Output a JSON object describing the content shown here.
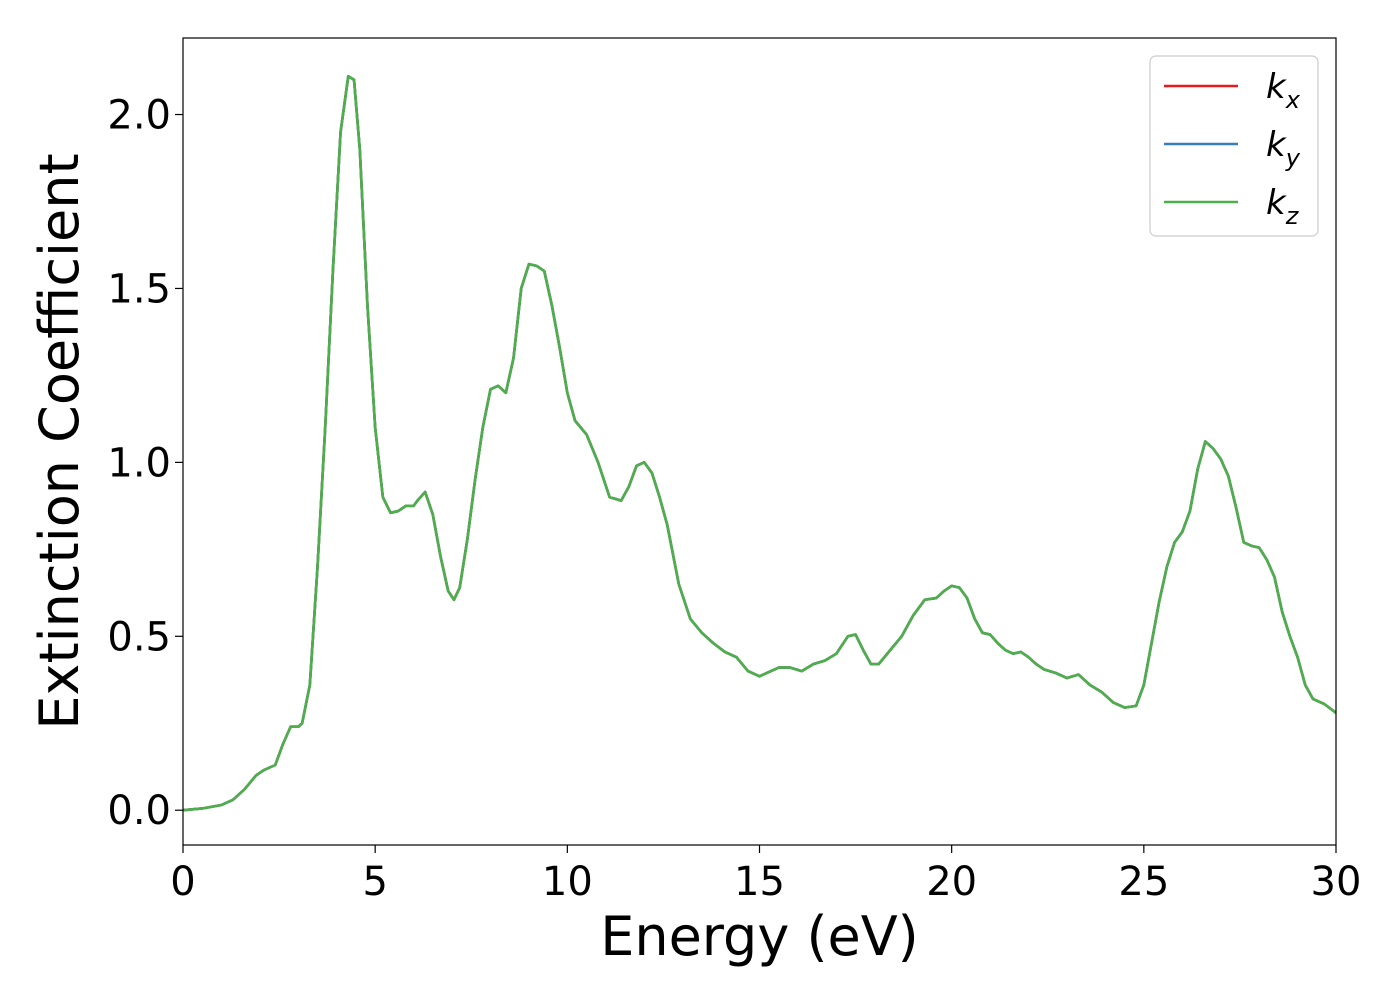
{
  "chart_data": {
    "type": "line",
    "title": "",
    "xlabel": "Energy (eV)",
    "ylabel": "Extinction Coefficient",
    "xlim": [
      0,
      30
    ],
    "ylim": [
      -0.1,
      2.22
    ],
    "xticks": [
      0,
      5,
      10,
      15,
      20,
      25,
      30
    ],
    "xtick_labels": [
      "0",
      "5",
      "10",
      "15",
      "20",
      "25",
      "30"
    ],
    "yticks": [
      0.0,
      0.5,
      1.0,
      1.5,
      2.0
    ],
    "ytick_labels": [
      "0.0",
      "0.5",
      "1.0",
      "1.5",
      "2.0"
    ],
    "grid": false,
    "legend_position": "top-right",
    "x": [
      0,
      0.5,
      1.0,
      1.3,
      1.6,
      1.9,
      2.1,
      2.4,
      2.6,
      2.8,
      3.0,
      3.1,
      3.3,
      3.5,
      3.7,
      3.9,
      4.1,
      4.3,
      4.45,
      4.6,
      4.8,
      5.0,
      5.2,
      5.4,
      5.6,
      5.8,
      6.0,
      6.1,
      6.3,
      6.5,
      6.7,
      6.9,
      7.05,
      7.2,
      7.4,
      7.6,
      7.8,
      8.0,
      8.2,
      8.4,
      8.6,
      8.8,
      9.0,
      9.2,
      9.4,
      9.6,
      9.8,
      10.0,
      10.2,
      10.5,
      10.8,
      11.1,
      11.4,
      11.6,
      11.8,
      12.0,
      12.2,
      12.4,
      12.6,
      12.9,
      13.2,
      13.5,
      13.8,
      14.1,
      14.4,
      14.7,
      15.0,
      15.2,
      15.5,
      15.8,
      16.1,
      16.4,
      16.7,
      17.0,
      17.3,
      17.5,
      17.7,
      17.9,
      18.1,
      18.4,
      18.7,
      19.0,
      19.3,
      19.6,
      19.8,
      20.0,
      20.2,
      20.4,
      20.6,
      20.8,
      21.0,
      21.2,
      21.4,
      21.6,
      21.8,
      22.0,
      22.2,
      22.4,
      22.7,
      23.0,
      23.3,
      23.6,
      23.9,
      24.2,
      24.5,
      24.8,
      25.0,
      25.2,
      25.4,
      25.6,
      25.8,
      26.0,
      26.2,
      26.4,
      26.6,
      26.8,
      27.0,
      27.2,
      27.4,
      27.6,
      27.8,
      28.0,
      28.2,
      28.4,
      28.6,
      28.8,
      29.0,
      29.2,
      29.4,
      29.7,
      30.0
    ],
    "series": [
      {
        "name": "k_x",
        "color": "#e41a1c",
        "values": [
          0.0,
          0.005,
          0.015,
          0.03,
          0.06,
          0.1,
          0.115,
          0.13,
          0.19,
          0.24,
          0.24,
          0.25,
          0.36,
          0.7,
          1.1,
          1.55,
          1.95,
          2.11,
          2.1,
          1.9,
          1.45,
          1.1,
          0.9,
          0.855,
          0.86,
          0.875,
          0.875,
          0.89,
          0.915,
          0.85,
          0.73,
          0.63,
          0.605,
          0.64,
          0.78,
          0.95,
          1.1,
          1.21,
          1.22,
          1.2,
          1.3,
          1.5,
          1.57,
          1.565,
          1.55,
          1.45,
          1.33,
          1.2,
          1.12,
          1.08,
          1.0,
          0.9,
          0.89,
          0.93,
          0.99,
          1.0,
          0.97,
          0.9,
          0.82,
          0.65,
          0.55,
          0.51,
          0.48,
          0.455,
          0.44,
          0.4,
          0.385,
          0.395,
          0.41,
          0.41,
          0.4,
          0.42,
          0.43,
          0.45,
          0.5,
          0.505,
          0.46,
          0.42,
          0.42,
          0.46,
          0.5,
          0.56,
          0.605,
          0.61,
          0.63,
          0.645,
          0.64,
          0.61,
          0.55,
          0.51,
          0.505,
          0.48,
          0.46,
          0.45,
          0.455,
          0.44,
          0.42,
          0.405,
          0.395,
          0.38,
          0.39,
          0.36,
          0.34,
          0.31,
          0.295,
          0.3,
          0.36,
          0.48,
          0.6,
          0.7,
          0.77,
          0.8,
          0.86,
          0.98,
          1.06,
          1.04,
          1.01,
          0.96,
          0.87,
          0.77,
          0.76,
          0.755,
          0.72,
          0.67,
          0.57,
          0.5,
          0.44,
          0.36,
          0.32,
          0.305,
          0.28
        ]
      },
      {
        "name": "k_y",
        "color": "#377eb8",
        "values": [
          0.0,
          0.005,
          0.015,
          0.03,
          0.06,
          0.1,
          0.115,
          0.13,
          0.19,
          0.24,
          0.24,
          0.25,
          0.36,
          0.7,
          1.1,
          1.55,
          1.95,
          2.11,
          2.1,
          1.9,
          1.45,
          1.1,
          0.9,
          0.855,
          0.86,
          0.875,
          0.875,
          0.89,
          0.915,
          0.85,
          0.73,
          0.63,
          0.605,
          0.64,
          0.78,
          0.95,
          1.1,
          1.21,
          1.22,
          1.2,
          1.3,
          1.5,
          1.57,
          1.565,
          1.55,
          1.45,
          1.33,
          1.2,
          1.12,
          1.08,
          1.0,
          0.9,
          0.89,
          0.93,
          0.99,
          1.0,
          0.97,
          0.9,
          0.82,
          0.65,
          0.55,
          0.51,
          0.48,
          0.455,
          0.44,
          0.4,
          0.385,
          0.395,
          0.41,
          0.41,
          0.4,
          0.42,
          0.43,
          0.45,
          0.5,
          0.505,
          0.46,
          0.42,
          0.42,
          0.46,
          0.5,
          0.56,
          0.605,
          0.61,
          0.63,
          0.645,
          0.64,
          0.61,
          0.55,
          0.51,
          0.505,
          0.48,
          0.46,
          0.45,
          0.455,
          0.44,
          0.42,
          0.405,
          0.395,
          0.38,
          0.39,
          0.36,
          0.34,
          0.31,
          0.295,
          0.3,
          0.36,
          0.48,
          0.6,
          0.7,
          0.77,
          0.8,
          0.86,
          0.98,
          1.06,
          1.04,
          1.01,
          0.96,
          0.87,
          0.77,
          0.76,
          0.755,
          0.72,
          0.67,
          0.57,
          0.5,
          0.44,
          0.36,
          0.32,
          0.305,
          0.28
        ]
      },
      {
        "name": "k_z",
        "color": "#4daf4a",
        "values": [
          0.0,
          0.005,
          0.015,
          0.03,
          0.06,
          0.1,
          0.115,
          0.13,
          0.19,
          0.24,
          0.24,
          0.25,
          0.36,
          0.7,
          1.1,
          1.55,
          1.95,
          2.11,
          2.1,
          1.9,
          1.45,
          1.1,
          0.9,
          0.855,
          0.86,
          0.875,
          0.875,
          0.89,
          0.915,
          0.85,
          0.73,
          0.63,
          0.605,
          0.64,
          0.78,
          0.95,
          1.1,
          1.21,
          1.22,
          1.2,
          1.3,
          1.5,
          1.57,
          1.565,
          1.55,
          1.45,
          1.33,
          1.2,
          1.12,
          1.08,
          1.0,
          0.9,
          0.89,
          0.93,
          0.99,
          1.0,
          0.97,
          0.9,
          0.82,
          0.65,
          0.55,
          0.51,
          0.48,
          0.455,
          0.44,
          0.4,
          0.385,
          0.395,
          0.41,
          0.41,
          0.4,
          0.42,
          0.43,
          0.45,
          0.5,
          0.505,
          0.46,
          0.42,
          0.42,
          0.46,
          0.5,
          0.56,
          0.605,
          0.61,
          0.63,
          0.645,
          0.64,
          0.61,
          0.55,
          0.51,
          0.505,
          0.48,
          0.46,
          0.45,
          0.455,
          0.44,
          0.42,
          0.405,
          0.395,
          0.38,
          0.39,
          0.36,
          0.34,
          0.31,
          0.295,
          0.3,
          0.36,
          0.48,
          0.6,
          0.7,
          0.77,
          0.8,
          0.86,
          0.98,
          1.06,
          1.04,
          1.01,
          0.96,
          0.87,
          0.77,
          0.76,
          0.755,
          0.72,
          0.67,
          0.57,
          0.5,
          0.44,
          0.36,
          0.32,
          0.305,
          0.28
        ]
      }
    ],
    "legend": [
      {
        "symbol": "k",
        "subscript": "x",
        "color": "#e41a1c"
      },
      {
        "symbol": "k",
        "subscript": "y",
        "color": "#377eb8"
      },
      {
        "symbol": "k",
        "subscript": "z",
        "color": "#4daf4a"
      }
    ]
  }
}
